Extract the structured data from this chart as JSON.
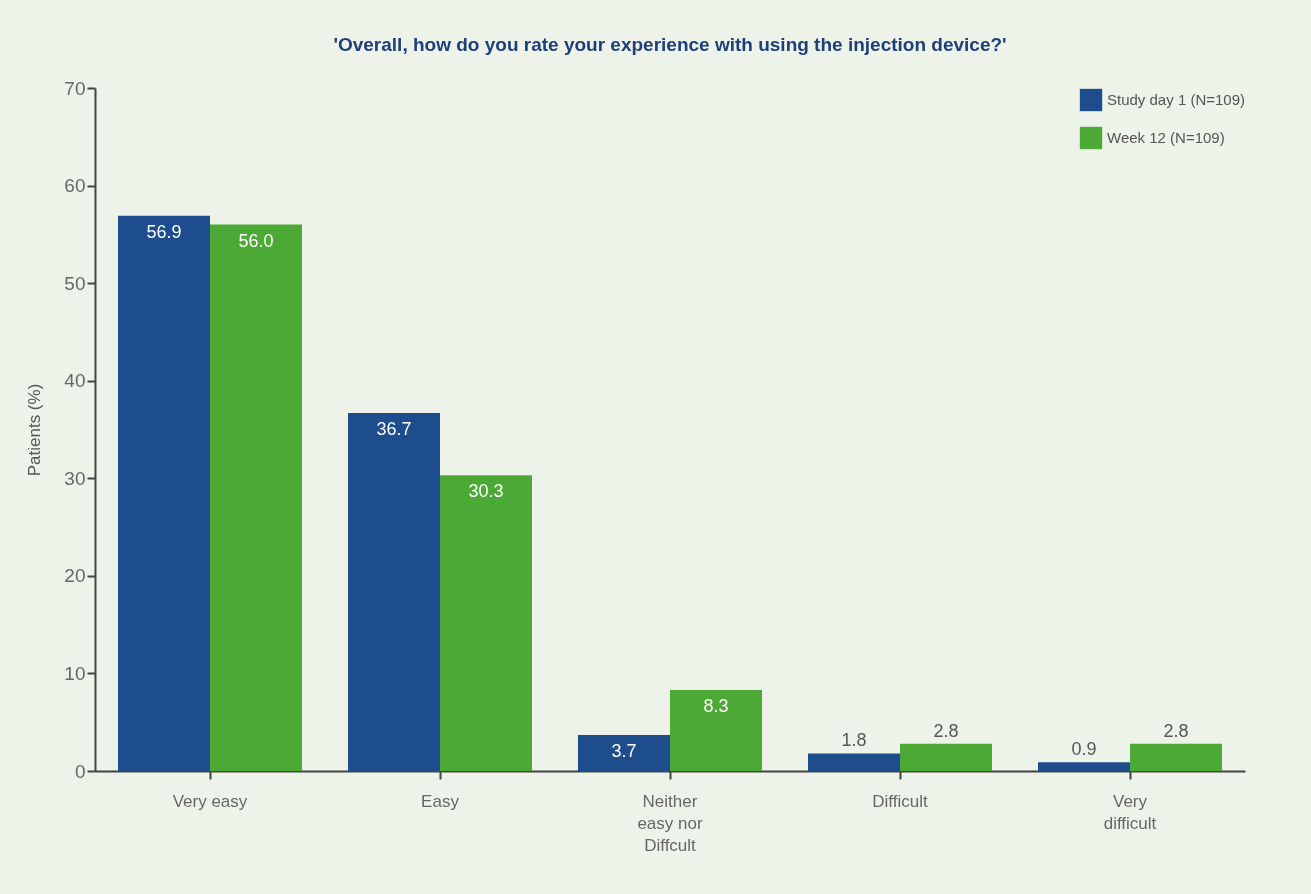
{
  "chart_data": {
    "type": "bar",
    "title": "'Overall, how do you rate your experience with using the injection device?'",
    "ylabel": "Patients (%)",
    "categories": [
      "Very easy",
      "Easy",
      "Neither easy nor Diffcult",
      "Difficult",
      "Very difficult"
    ],
    "series": [
      {
        "name": "Study day 1 (N=109)",
        "color": "#1d4d8c",
        "values": [
          56.9,
          36.7,
          3.7,
          1.8,
          0.9
        ],
        "value_labels": [
          "56.9",
          "36.7",
          "3.7",
          "1.8",
          "0.9"
        ]
      },
      {
        "name": "Week 12 (N=109)",
        "color": "#4da935",
        "values": [
          56.0,
          30.3,
          8.3,
          2.8,
          2.8
        ],
        "value_labels": [
          "56.0",
          "30.3",
          "8.3",
          "2.8",
          "2.8"
        ]
      }
    ],
    "ylim": [
      0,
      70
    ],
    "yticks": [
      0,
      10,
      20,
      30,
      40,
      50,
      60,
      70
    ],
    "grid": false,
    "legend": "top right"
  }
}
